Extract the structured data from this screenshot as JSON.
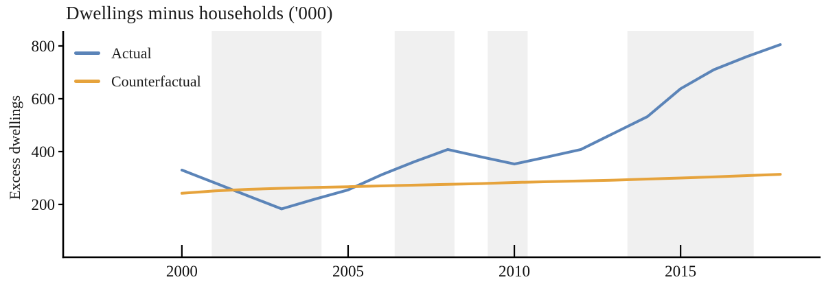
{
  "title": "Dwellings minus households ('000)",
  "ylabel": "Excess dwellings",
  "colors": {
    "actual": "#5b84b8",
    "counterfactual": "#e6a33c",
    "band": "#f0f0f0",
    "axis": "#000000",
    "background": "#ffffff"
  },
  "legend": {
    "position": "top-left",
    "items": [
      {
        "label": "Actual",
        "color": "#5b84b8"
      },
      {
        "label": "Counterfactual",
        "color": "#e6a33c"
      }
    ]
  },
  "chart_data": {
    "type": "line",
    "title": "Dwellings minus households ('000)",
    "xlabel": "",
    "ylabel": "Excess dwellings",
    "x": [
      2000,
      2001,
      2002,
      2003,
      2004,
      2005,
      2006,
      2007,
      2008,
      2009,
      2010,
      2011,
      2012,
      2013,
      2014,
      2015,
      2016,
      2017,
      2018
    ],
    "series": [
      {
        "name": "Actual",
        "color": "#5b84b8",
        "values": [
          330,
          281,
          232,
          183,
          220,
          255,
          312,
          362,
          408,
          380,
          353,
          380,
          408,
          470,
          532,
          638,
          710,
          760,
          805
        ]
      },
      {
        "name": "Counterfactual",
        "color": "#e6a33c",
        "values": [
          242,
          251,
          257,
          261,
          264,
          267,
          270,
          273,
          276,
          279,
          283,
          286,
          289,
          292,
          296,
          300,
          304,
          309,
          314
        ]
      }
    ],
    "x_ticks": [
      2000,
      2005,
      2010,
      2015
    ],
    "y_ticks": [
      200,
      400,
      600,
      800
    ],
    "x_domain": [
      1996.43,
      2019.21
    ],
    "y_domain": [
      0,
      857
    ],
    "grid": false,
    "legend_position": "top-left",
    "shaded_bands": [
      [
        2000.9,
        2004.2
      ],
      [
        2006.4,
        2008.2
      ],
      [
        2009.2,
        2010.4
      ],
      [
        2013.4,
        2017.2
      ]
    ],
    "band_color": "#f0f0f0"
  }
}
